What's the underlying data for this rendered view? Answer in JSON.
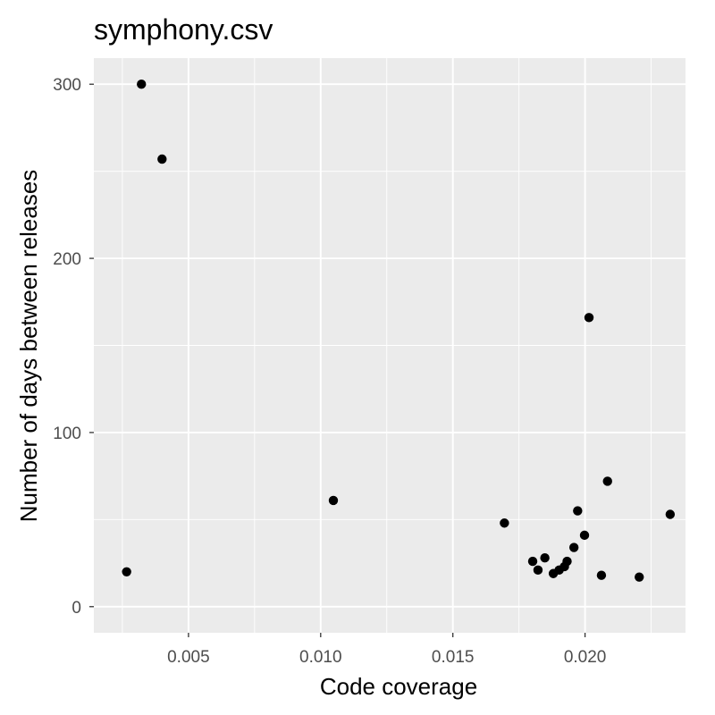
{
  "chart_data": {
    "type": "scatter",
    "title": "symphony.csv",
    "xlabel": "Code coverage",
    "ylabel": "Number of days between releases",
    "xlim": [
      0.00142,
      0.0238
    ],
    "ylim": [
      -15,
      315
    ],
    "x_ticks": [
      {
        "value": 0.005,
        "label": "0.005"
      },
      {
        "value": 0.01,
        "label": "0.010"
      },
      {
        "value": 0.015,
        "label": "0.015"
      },
      {
        "value": 0.02,
        "label": "0.020"
      }
    ],
    "x_minor_ticks": [
      0.0025,
      0.0075,
      0.0125,
      0.0175,
      0.0225
    ],
    "y_ticks": [
      {
        "value": 0,
        "label": "0"
      },
      {
        "value": 100,
        "label": "100"
      },
      {
        "value": 200,
        "label": "200"
      },
      {
        "value": 300,
        "label": "300"
      }
    ],
    "y_minor_ticks": [
      50,
      150,
      250
    ],
    "grid": true,
    "colors": {
      "panel_background": "#ebebeb",
      "grid_line": "#ffffff",
      "point": "#000000",
      "tick_label": "#4d4d4d",
      "tick_mark": "#333333"
    },
    "points": [
      {
        "x": 0.00266,
        "y": 20
      },
      {
        "x": 0.00322,
        "y": 300
      },
      {
        "x": 0.004,
        "y": 257
      },
      {
        "x": 0.01048,
        "y": 61
      },
      {
        "x": 0.01695,
        "y": 48
      },
      {
        "x": 0.01802,
        "y": 26
      },
      {
        "x": 0.01822,
        "y": 21
      },
      {
        "x": 0.01848,
        "y": 28
      },
      {
        "x": 0.0188,
        "y": 19
      },
      {
        "x": 0.01902,
        "y": 21
      },
      {
        "x": 0.01922,
        "y": 23
      },
      {
        "x": 0.01932,
        "y": 26
      },
      {
        "x": 0.01958,
        "y": 34
      },
      {
        "x": 0.01972,
        "y": 55
      },
      {
        "x": 0.01998,
        "y": 41
      },
      {
        "x": 0.02015,
        "y": 166
      },
      {
        "x": 0.02062,
        "y": 18
      },
      {
        "x": 0.02085,
        "y": 72
      },
      {
        "x": 0.02205,
        "y": 17
      },
      {
        "x": 0.02322,
        "y": 53
      }
    ]
  }
}
